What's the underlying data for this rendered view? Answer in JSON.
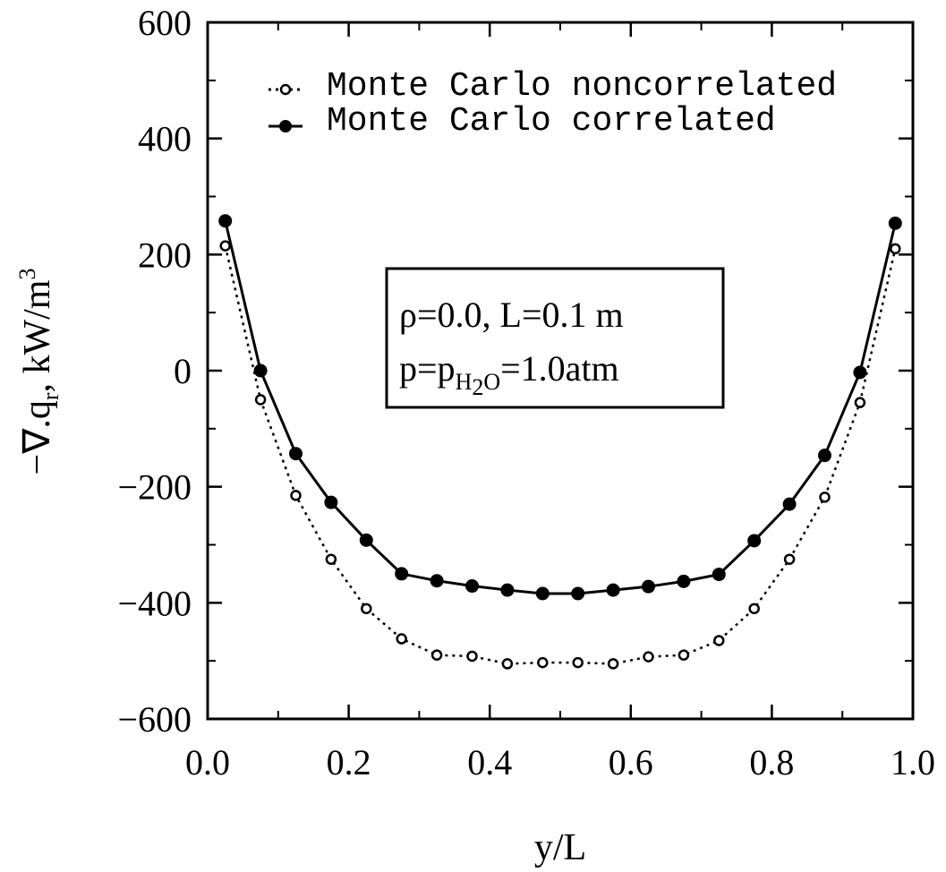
{
  "chart_data": {
    "type": "line",
    "xlabel": "y/L",
    "ylabel_parts": [
      "−∇.q",
      "r",
      ", kW/m",
      "3"
    ],
    "xlim": [
      0.0,
      1.0
    ],
    "ylim": [
      -600,
      600
    ],
    "x_ticks": [
      0.0,
      0.2,
      0.4,
      0.6,
      0.8,
      1.0
    ],
    "x_tick_labels": [
      "0.0",
      "0.2",
      "0.4",
      "0.6",
      "0.8",
      "1.0"
    ],
    "y_ticks": [
      -600,
      -400,
      -200,
      0,
      200,
      400,
      600
    ],
    "y_tick_labels": [
      "−600",
      "−400",
      "−200",
      "0",
      "200",
      "400",
      "600"
    ],
    "grid": false,
    "legend_position": "top-left",
    "series": [
      {
        "name": "Monte Carlo noncorrelated",
        "marker": "open-circle",
        "line": "dotted",
        "x": [
          0.025,
          0.075,
          0.125,
          0.175,
          0.225,
          0.275,
          0.325,
          0.375,
          0.425,
          0.475,
          0.525,
          0.575,
          0.625,
          0.675,
          0.725,
          0.775,
          0.825,
          0.875,
          0.925,
          0.975
        ],
        "y": [
          215,
          -50,
          -215,
          -325,
          -410,
          -462,
          -490,
          -492,
          -505,
          -503,
          -503,
          -505,
          -493,
          -490,
          -465,
          -410,
          -325,
          -218,
          -55,
          210
        ]
      },
      {
        "name": "Monte Carlo correlated",
        "marker": "filled-circle",
        "line": "solid",
        "x": [
          0.025,
          0.075,
          0.125,
          0.175,
          0.225,
          0.275,
          0.325,
          0.375,
          0.425,
          0.475,
          0.525,
          0.575,
          0.625,
          0.675,
          0.725,
          0.775,
          0.825,
          0.875,
          0.925,
          0.975
        ],
        "y": [
          258,
          0,
          -143,
          -227,
          -292,
          -350,
          -362,
          -371,
          -378,
          -384,
          -384,
          -378,
          -372,
          -363,
          -351,
          -293,
          -230,
          -146,
          -3,
          254
        ]
      }
    ],
    "annotation": {
      "line1": "ρ=0.0, L=0.1 m",
      "line2_parts": [
        "p=p",
        "H",
        "2",
        "O",
        "=1.0atm"
      ],
      "position": "center"
    }
  }
}
